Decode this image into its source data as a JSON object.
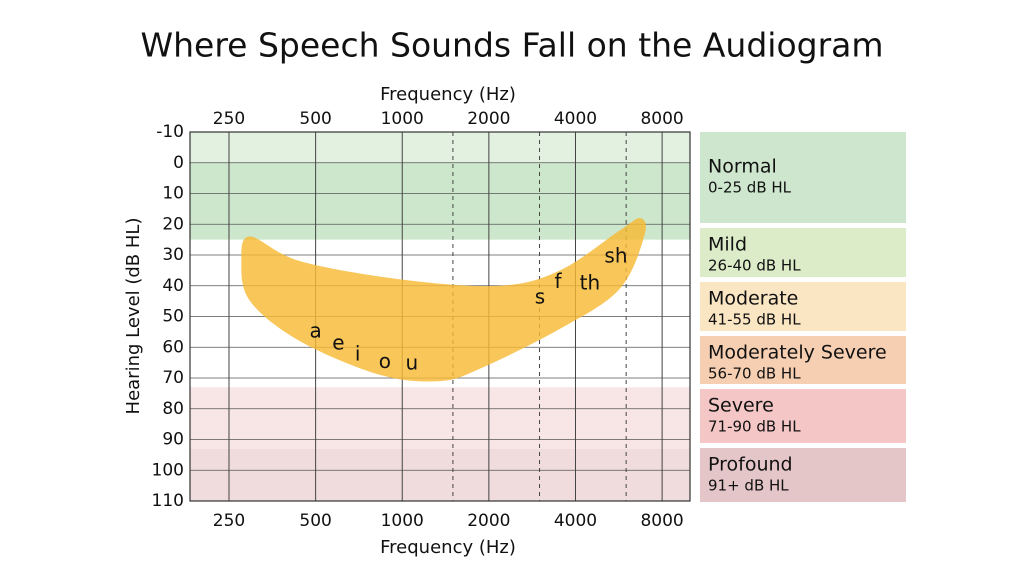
{
  "chart_data": {
    "type": "audiogram",
    "title": "Where Speech Sounds Fall on the Audiogram",
    "x_label": "Frequency (Hz)",
    "y_label": "Hearing Level (dB HL)",
    "x_log": true,
    "xlim": [
      183,
      10000
    ],
    "xticks": [
      250,
      500,
      1000,
      2000,
      4000,
      8000
    ],
    "minor_xticks": [
      1500,
      3000,
      6000
    ],
    "ylim": [
      -10,
      110
    ],
    "y_reversed": true,
    "yticks": [
      -10,
      0,
      10,
      20,
      30,
      40,
      50,
      60,
      70,
      80,
      90,
      100,
      110
    ],
    "grid": true,
    "shading": [
      {
        "from": -10,
        "to": 0,
        "color": "#e3f1e1"
      },
      {
        "from": 0,
        "to": 25,
        "color": "#cde7cc"
      },
      {
        "from": 73,
        "to": 93,
        "color": "#f8e6e6"
      },
      {
        "from": 93,
        "to": 110,
        "color": "#f0dcdc"
      }
    ],
    "speech_banana": {
      "color": "#f6b935",
      "x": [
        296,
        441,
        1000,
        2187,
        3535,
        5700,
        6720,
        6950,
        5700,
        3535,
        1860,
        1350,
        838,
        441,
        296,
        276
      ],
      "y": [
        24,
        32,
        38,
        40,
        35,
        22,
        18,
        23.5,
        41,
        54,
        67,
        71,
        69,
        58,
        45,
        32
      ]
    },
    "annotations": [
      {
        "text": "a",
        "x": 500,
        "y": 55
      },
      {
        "text": "e",
        "x": 600,
        "y": 59
      },
      {
        "text": "i",
        "x": 700,
        "y": 62.5
      },
      {
        "text": "o",
        "x": 870,
        "y": 65
      },
      {
        "text": "u",
        "x": 1080,
        "y": 65.5
      },
      {
        "text": "s",
        "x": 3010,
        "y": 44
      },
      {
        "text": "f",
        "x": 3480,
        "y": 39
      },
      {
        "text": "th",
        "x": 4490,
        "y": 39.5
      },
      {
        "text": "sh",
        "x": 5530,
        "y": 30.6
      }
    ],
    "degrees": [
      {
        "name": "Normal",
        "range": "0-25 dB HL",
        "color": "#cde6cd"
      },
      {
        "name": "Mild",
        "range": "26-40 dB HL",
        "color": "#dcebc8"
      },
      {
        "name": "Moderate",
        "range": "41-55 dB HL",
        "color": "#fbe6c4"
      },
      {
        "name": "Moderately Severe",
        "range": "56-70 dB HL",
        "color": "#f6cfb2"
      },
      {
        "name": "Severe",
        "range": "71-90 dB HL",
        "color": "#f4c6c6"
      },
      {
        "name": "Profound",
        "range": "91+ dB HL",
        "color": "#e4c6c8"
      }
    ]
  }
}
